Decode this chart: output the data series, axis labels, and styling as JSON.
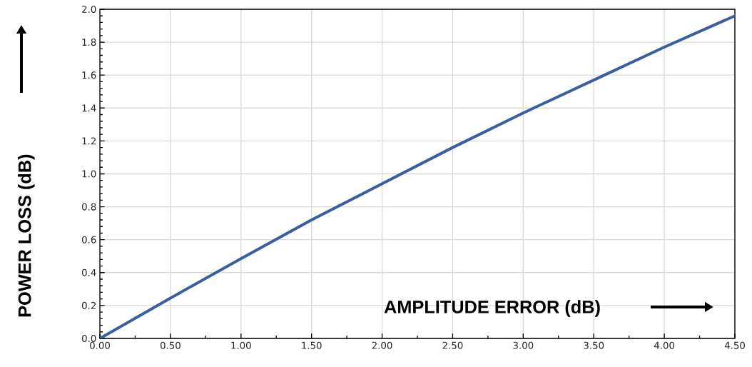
{
  "chart_data": {
    "type": "line",
    "xlabel": "AMPLITUDE ERROR (dB)",
    "ylabel": "POWER LOSS (dB)",
    "x": [
      0,
      0.5,
      1,
      1.5,
      2,
      2.5,
      3,
      3.5,
      4,
      4.5
    ],
    "series": [
      {
        "color": "#3a5fa0",
        "values": [
          0,
          0.245,
          0.485,
          0.72,
          0.94,
          1.16,
          1.37,
          1.57,
          1.77,
          1.96
        ]
      }
    ],
    "xlim": [
      0,
      4.5
    ],
    "ylim": [
      0,
      2
    ],
    "xticks": [
      {
        "value": 0,
        "label": "0.00"
      },
      {
        "value": 0.5,
        "label": "0.50"
      },
      {
        "value": 1,
        "label": "1.00"
      },
      {
        "value": 1.5,
        "label": "1.50"
      },
      {
        "value": 2,
        "label": "2.00"
      },
      {
        "value": 2.5,
        "label": "2.50"
      },
      {
        "value": 3,
        "label": "3.00"
      },
      {
        "value": 3.5,
        "label": "3.50"
      },
      {
        "value": 4,
        "label": "4.00"
      },
      {
        "value": 4.5,
        "label": "4.50"
      }
    ],
    "yticks": [
      {
        "value": 0,
        "label": "0.0"
      },
      {
        "value": 0.2,
        "label": "0.2"
      },
      {
        "value": 0.4,
        "label": "0.4"
      },
      {
        "value": 0.6,
        "label": "0.6"
      },
      {
        "value": 0.8,
        "label": "0.8"
      },
      {
        "value": 1,
        "label": "1.0"
      },
      {
        "value": 1.2,
        "label": "1.2"
      },
      {
        "value": 1.4,
        "label": "1.4"
      },
      {
        "value": 1.6,
        "label": "1.6"
      },
      {
        "value": 1.8,
        "label": "1.8"
      },
      {
        "value": 2,
        "label": "2.0"
      }
    ],
    "grid": true,
    "marker": "none",
    "line_style": "solid"
  }
}
